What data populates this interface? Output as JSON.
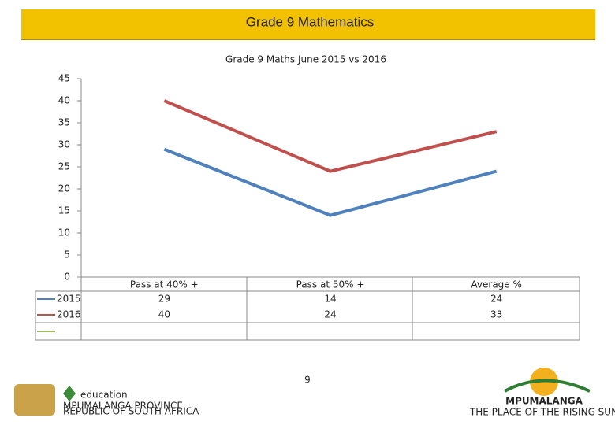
{
  "page_title": "Grade 9 Mathematics",
  "chart_data": {
    "type": "line",
    "title": "Grade 9 Maths June 2015 vs 2016",
    "categories": [
      "Pass at 40% +",
      "Pass at 50% +",
      "Average %"
    ],
    "series": [
      {
        "name": "2015",
        "color": "#4f81bd",
        "values": [
          29,
          14,
          24
        ]
      },
      {
        "name": "2016",
        "color": "#c0504d",
        "values": [
          40,
          24,
          33
        ]
      }
    ],
    "ylim": [
      0,
      45
    ],
    "yticks": [
      0,
      5,
      10,
      15,
      20,
      25,
      30,
      35,
      40,
      45
    ],
    "grid": false
  },
  "page_number": "9",
  "logos": {
    "left": [
      "education",
      "MPUMALANGA PROVINCE",
      "REPUBLIC OF SOUTH AFRICA"
    ],
    "right": [
      "MPUMALANGA",
      "THE PLACE OF THE RISING SUN"
    ]
  }
}
